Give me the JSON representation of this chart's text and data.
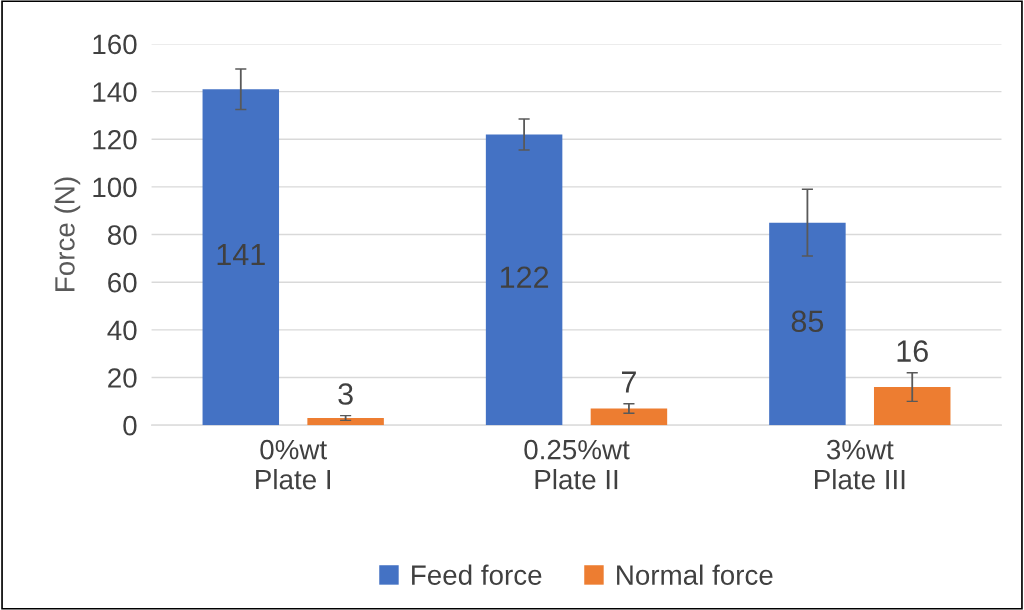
{
  "chart_data": {
    "type": "bar",
    "ylabel": "Force (N)",
    "categories": [
      "0%wt\nPlate I",
      "0.25%wt\nPlate II",
      "3%wt\nPlate III"
    ],
    "series": [
      {
        "name": "Feed force",
        "color": "#4472c4",
        "values": [
          141,
          122,
          85
        ],
        "errors": [
          8.5,
          6.5,
          14
        ]
      },
      {
        "name": "Normal force",
        "color": "#ed7d31",
        "values": [
          3,
          7,
          16
        ],
        "errors": [
          1,
          2,
          6
        ]
      }
    ],
    "ylim": [
      0,
      160
    ],
    "yticks": [
      0,
      20,
      40,
      60,
      80,
      100,
      120,
      140,
      160
    ],
    "grid": "y",
    "legend": "bottom",
    "data_labels": true
  }
}
